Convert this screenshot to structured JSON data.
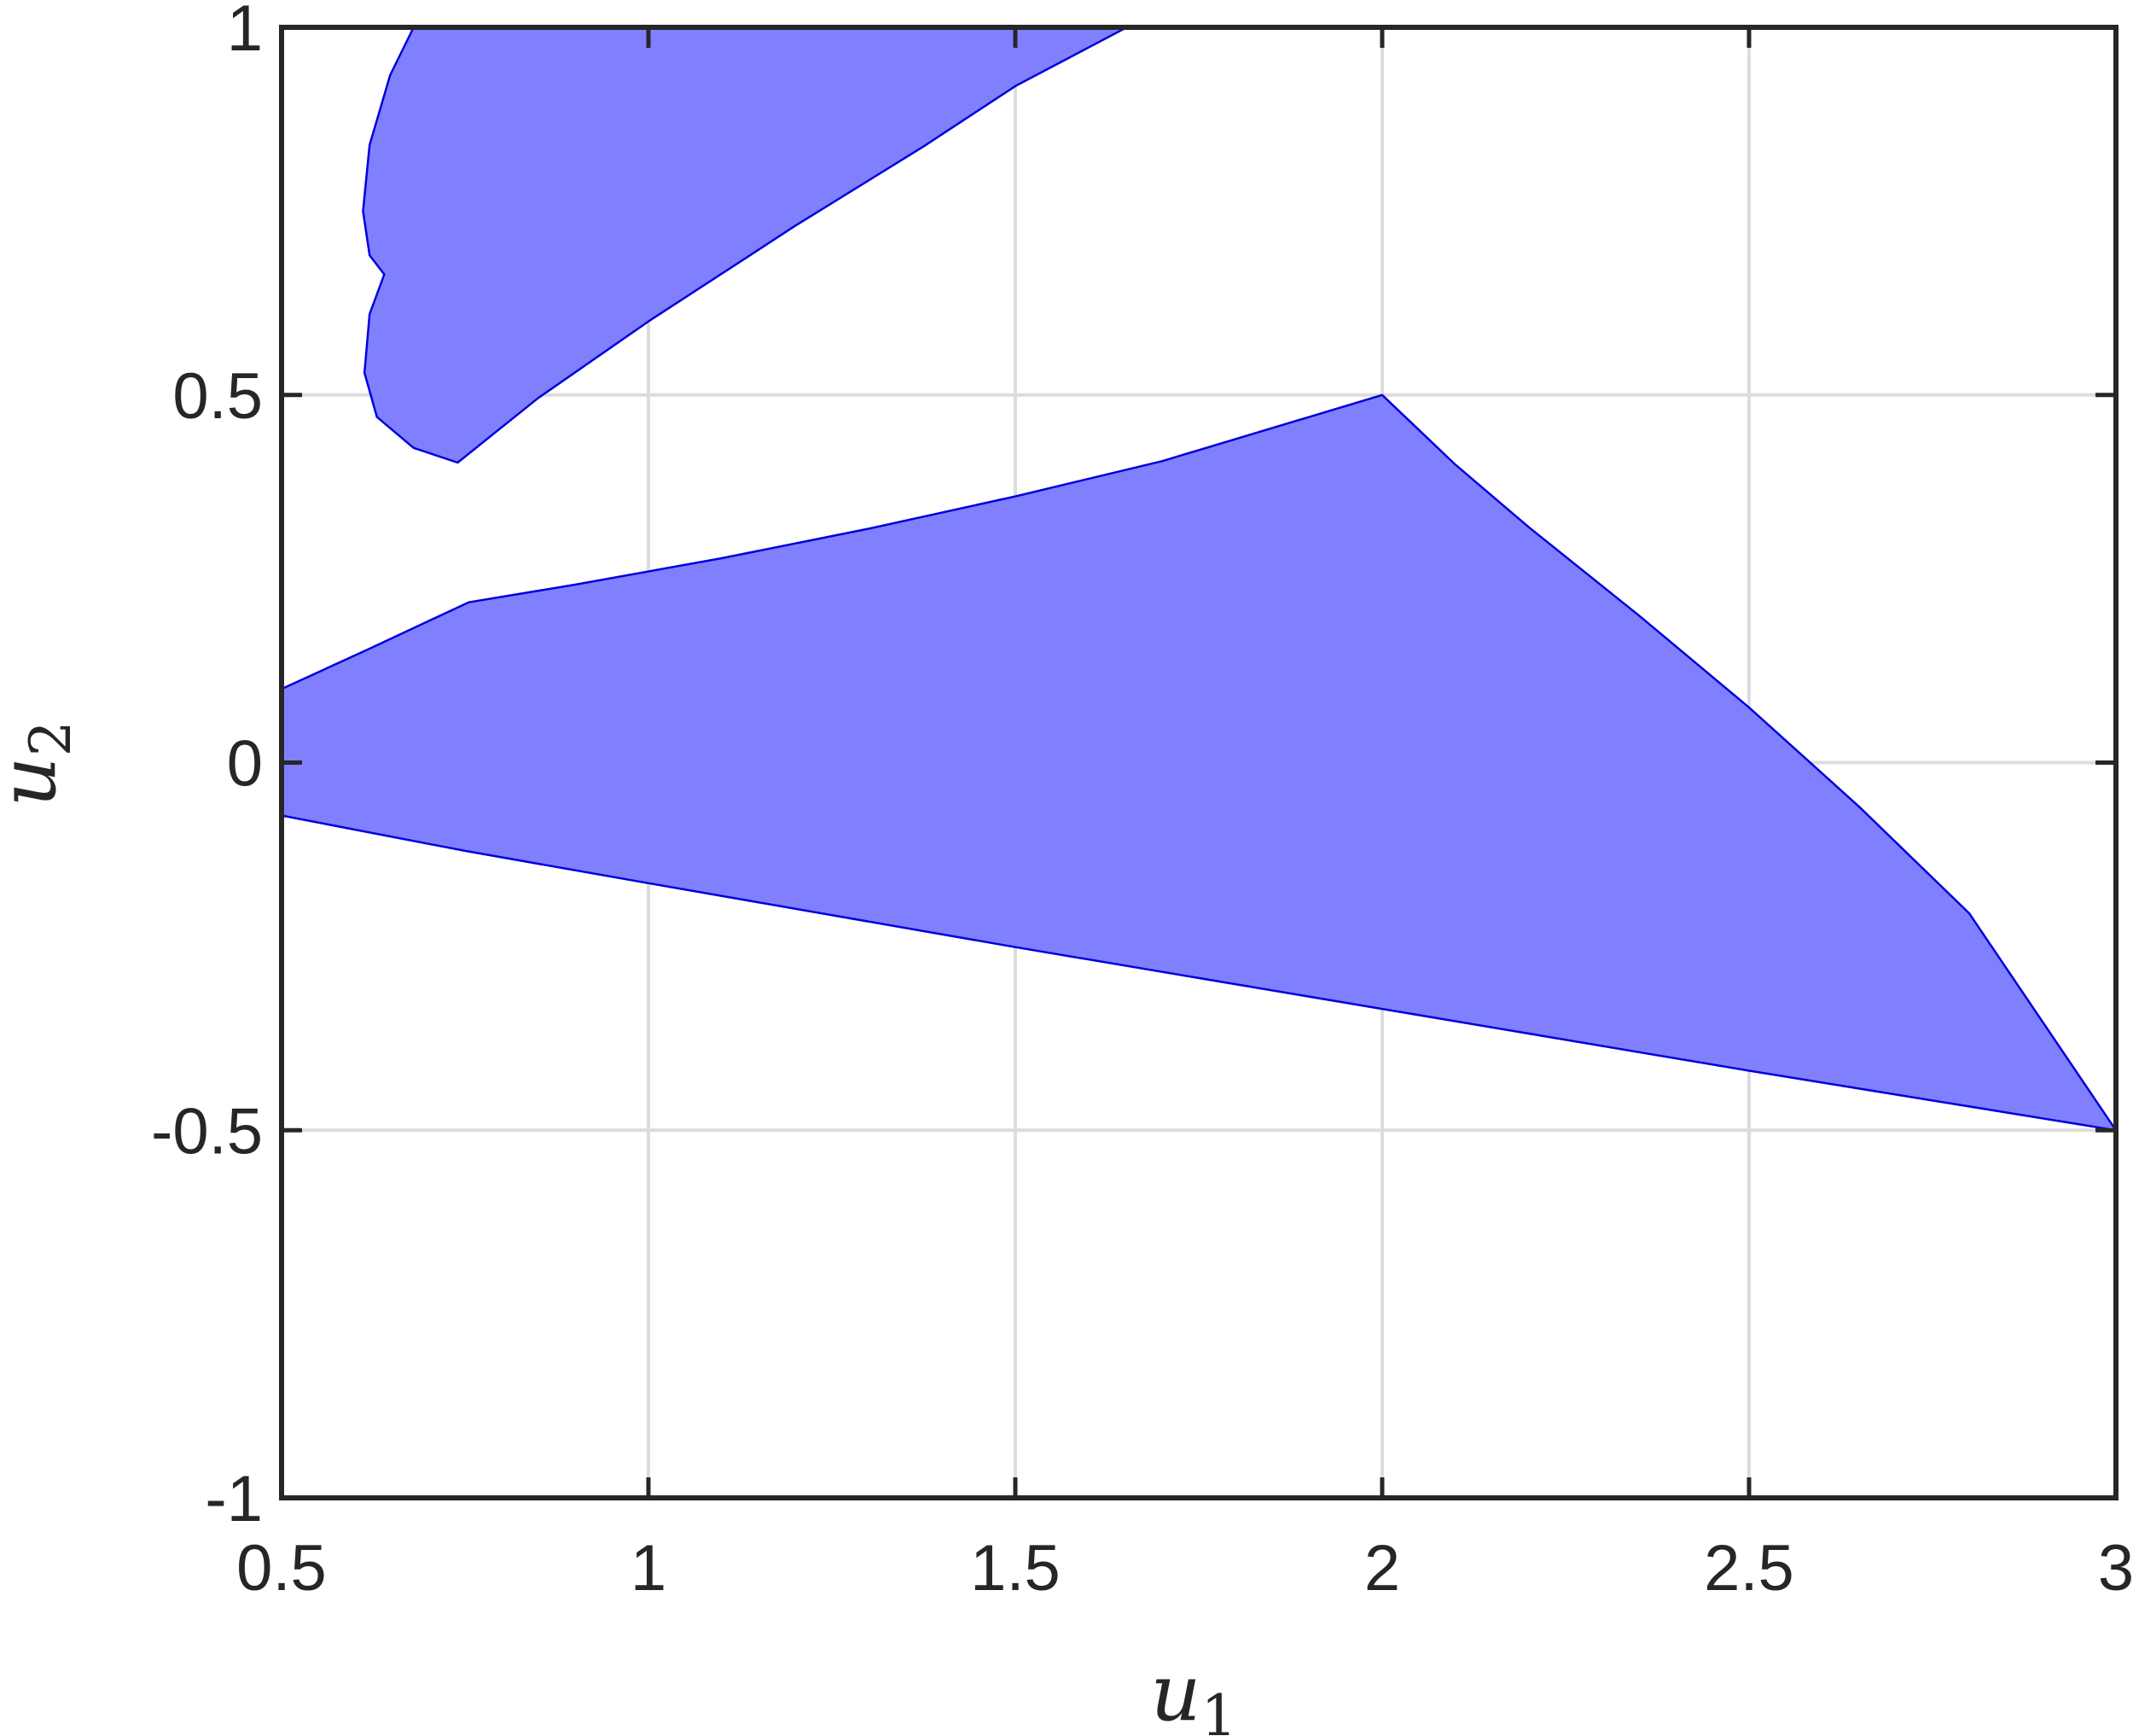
{
  "chart_data": {
    "type": "area",
    "title": "",
    "xlabel": "u",
    "xlabel_sub": "1",
    "ylabel": "u",
    "ylabel_sub": "2",
    "xlim": [
      0.5,
      3
    ],
    "ylim": [
      -1,
      1
    ],
    "grid": true,
    "legend": "none",
    "xticks": [
      0.5,
      1,
      1.5,
      2,
      2.5,
      3
    ],
    "yticks": [
      -1,
      -0.5,
      0,
      0.5,
      1
    ],
    "xtick_labels": [
      "0.5",
      "1",
      "1.5",
      "2",
      "2.5",
      "3"
    ],
    "ytick_labels": [
      "-1",
      "-0.5",
      "0",
      "0.5",
      "1"
    ],
    "fill_color": "#8080ff",
    "edge_color": "#0000dd",
    "regions": [
      {
        "points": [
          [
            0.68,
            1.0
          ],
          [
            1.652,
            1.0
          ],
          [
            1.5,
            0.92
          ],
          [
            1.375,
            0.838
          ],
          [
            1.2,
            0.73
          ],
          [
            1.0,
            0.6
          ],
          [
            0.85,
            0.496
          ],
          [
            0.74,
            0.408
          ],
          [
            0.68,
            0.428
          ],
          [
            0.63,
            0.47
          ],
          [
            0.613,
            0.53
          ],
          [
            0.62,
            0.61
          ],
          [
            0.64,
            0.664
          ],
          [
            0.62,
            0.69
          ],
          [
            0.611,
            0.75
          ],
          [
            0.62,
            0.84
          ],
          [
            0.648,
            0.935
          ]
        ]
      },
      {
        "points": [
          [
            0.5,
            0.1
          ],
          [
            0.62,
            0.155
          ],
          [
            0.755,
            0.218
          ],
          [
            0.9,
            0.242
          ],
          [
            1.1,
            0.278
          ],
          [
            1.3,
            0.318
          ],
          [
            1.5,
            0.362
          ],
          [
            1.7,
            0.41
          ],
          [
            2.0,
            0.5
          ],
          [
            2.1,
            0.405
          ],
          [
            2.2,
            0.32
          ],
          [
            2.35,
            0.2
          ],
          [
            2.5,
            0.075
          ],
          [
            2.65,
            -0.06
          ],
          [
            2.8,
            -0.205
          ],
          [
            3.0,
            -0.5
          ],
          [
            2.5,
            -0.419
          ],
          [
            2.0,
            -0.335
          ],
          [
            1.5,
            -0.251
          ],
          [
            1.0,
            -0.164
          ],
          [
            0.75,
            -0.12
          ],
          [
            0.5,
            -0.072
          ]
        ]
      }
    ]
  }
}
